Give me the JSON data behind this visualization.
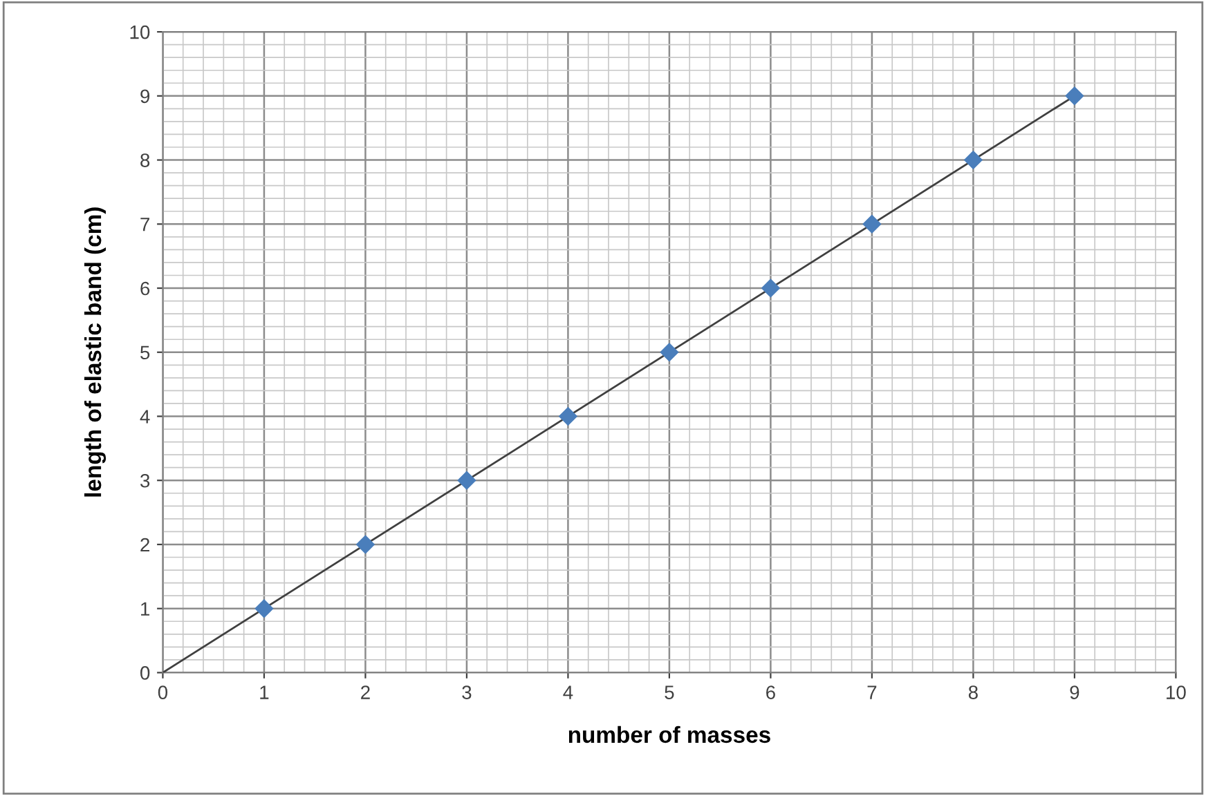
{
  "chart_data": {
    "type": "scatter",
    "xlabel": "number of masses",
    "ylabel": "length of elastic band (cm)",
    "xlim": [
      0,
      10
    ],
    "ylim": [
      0,
      10
    ],
    "xticks": [
      0,
      1,
      2,
      3,
      4,
      5,
      6,
      7,
      8,
      9,
      10
    ],
    "yticks": [
      0,
      1,
      2,
      3,
      4,
      5,
      6,
      7,
      8,
      9,
      10
    ],
    "grid": true,
    "series": [
      {
        "marker": "diamond",
        "color": "#4a7ebb",
        "x": [
          1,
          2,
          3,
          4,
          5,
          6,
          7,
          8,
          9
        ],
        "values": [
          1,
          2,
          3,
          4,
          5,
          6,
          7,
          8,
          9
        ]
      },
      {
        "type": "line",
        "color": "#404040",
        "x": [
          0,
          9
        ],
        "values": [
          0,
          9
        ]
      }
    ]
  }
}
